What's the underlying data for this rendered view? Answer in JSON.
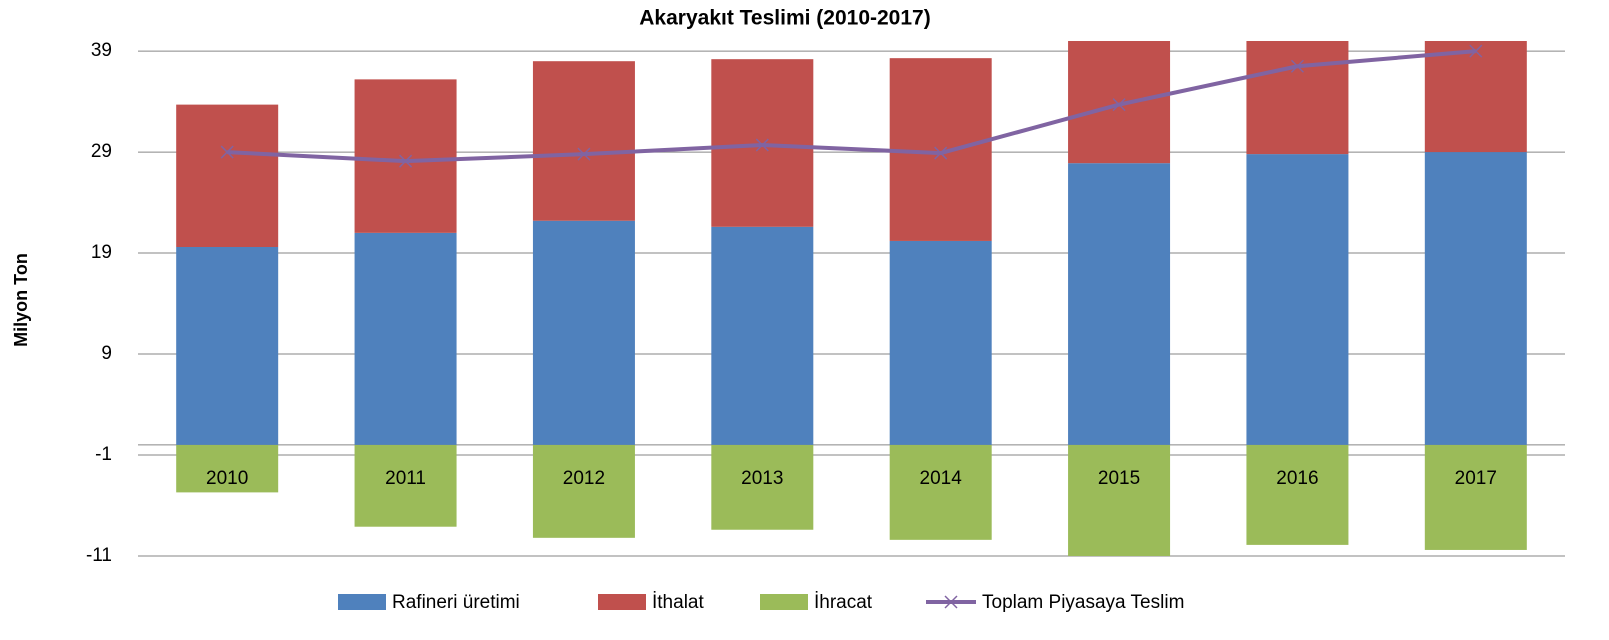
{
  "chart_data": {
    "type": "bar",
    "stacked": true,
    "title": "Akaryakıt Teslimi (2010-2017)",
    "y_label": "Milyon Ton",
    "categories": [
      "2010",
      "2011",
      "2012",
      "2013",
      "2014",
      "2015",
      "2016",
      "2017"
    ],
    "series": [
      {
        "name": "Rafineri üretimi",
        "color": "#4f81bd",
        "values": [
          19.6,
          21.0,
          22.2,
          21.6,
          20.2,
          27.9,
          28.8,
          29.0
        ]
      },
      {
        "name": "İthalat",
        "color": "#c0504d",
        "values": [
          14.1,
          15.2,
          15.8,
          16.6,
          18.1,
          13.6,
          13.2,
          14.0
        ]
      },
      {
        "name": "İhracat",
        "color": "#9bbb59",
        "values": [
          -4.7,
          -8.1,
          -9.2,
          -8.4,
          -9.4,
          -11.0,
          -9.9,
          -10.4
        ]
      },
      {
        "name": "Toplam Piyasaya Teslim",
        "color": "#8064a2",
        "type": "line",
        "values": [
          29.0,
          28.1,
          28.8,
          29.7,
          28.9,
          33.7,
          37.5,
          39.0
        ]
      }
    ],
    "ylim": [
      -11,
      40
    ],
    "yticks": [
      -11,
      -1,
      9,
      19,
      29,
      39
    ],
    "grid": true,
    "legend": "bottom"
  }
}
